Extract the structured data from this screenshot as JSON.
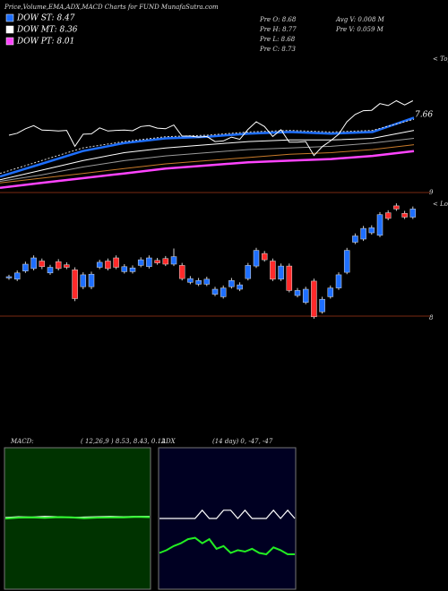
{
  "header": {
    "title": "Price,Volume,EMA,ADX,MACD Charts for FUND MunafaSutra.com"
  },
  "stats": {
    "left": [
      "Pre  O: 8.68",
      "Pre  H: 8.77",
      "Pre  L: 8.68",
      "Pre  C: 8.73"
    ],
    "right": [
      "Avg V: 0.008 M",
      "Pre  V: 0.059 M"
    ]
  },
  "price_panel": {
    "ylim": [
      6.0,
      10.3
    ],
    "last_label": "7.66",
    "right_top": "< Tope",
    "right_mark": "9",
    "series": [
      {
        "name": "DOW ST: 8.47",
        "color": "#1e6fff",
        "values": [
          6.5,
          6.9,
          7.3,
          7.55,
          7.7,
          7.75,
          7.85,
          7.9,
          7.85,
          7.9,
          8.35
        ]
      },
      {
        "name": "DOW MT: 8.36",
        "color": "#ffffff",
        "values": [
          6.4,
          6.7,
          7.0,
          7.25,
          7.4,
          7.5,
          7.6,
          7.65,
          7.65,
          7.7,
          7.95
        ]
      },
      {
        "name": "DOW PT: 8.01",
        "color": "#ff44ff",
        "values": [
          6.15,
          6.3,
          6.45,
          6.6,
          6.75,
          6.85,
          6.95,
          7.0,
          7.05,
          7.15,
          7.3
        ]
      },
      {
        "color": "#c87a2a",
        "values": [
          6.3,
          6.45,
          6.6,
          6.75,
          6.9,
          7.0,
          7.1,
          7.2,
          7.25,
          7.35,
          7.5
        ]
      },
      {
        "color": "#9a9a9a",
        "values": [
          6.35,
          6.55,
          6.8,
          7.0,
          7.15,
          7.25,
          7.35,
          7.4,
          7.45,
          7.55,
          7.7
        ]
      },
      {
        "color": "#dddddd",
        "dashed": true,
        "values": [
          6.6,
          7.0,
          7.4,
          7.6,
          7.75,
          7.8,
          7.9,
          7.95,
          7.9,
          7.95,
          8.3
        ]
      }
    ]
  },
  "candle_panel": {
    "ylim": [
      7.1,
      9.0
    ],
    "right_top": "< Lower",
    "right_mark": "8",
    "up_color": "#1e6fff",
    "down_color": "#ff2a2a",
    "candles": [
      [
        7.78,
        7.83,
        7.75,
        7.8
      ],
      [
        7.76,
        7.9,
        7.73,
        7.86
      ],
      [
        7.89,
        8.04,
        7.86,
        8.0
      ],
      [
        7.93,
        8.14,
        7.9,
        8.1
      ],
      [
        8.05,
        8.09,
        7.92,
        7.96
      ],
      [
        7.86,
        7.99,
        7.83,
        7.95
      ],
      [
        8.04,
        8.08,
        7.9,
        7.93
      ],
      [
        7.99,
        8.03,
        7.92,
        7.95
      ],
      [
        7.91,
        7.95,
        7.41,
        7.45
      ],
      [
        7.64,
        7.87,
        7.6,
        7.83
      ],
      [
        7.64,
        7.88,
        7.6,
        7.84
      ],
      [
        7.95,
        8.07,
        7.92,
        8.03
      ],
      [
        8.05,
        8.09,
        7.9,
        7.93
      ],
      [
        8.1,
        8.14,
        7.92,
        7.95
      ],
      [
        7.88,
        8.0,
        7.85,
        7.96
      ],
      [
        7.88,
        7.98,
        7.85,
        7.94
      ],
      [
        7.98,
        8.11,
        7.95,
        8.07
      ],
      [
        7.96,
        8.14,
        7.93,
        8.1
      ],
      [
        8.06,
        8.1,
        7.99,
        8.02
      ],
      [
        8.09,
        8.13,
        7.97,
        8.0
      ],
      [
        8.0,
        8.25,
        7.97,
        8.12
      ],
      [
        7.98,
        8.02,
        7.74,
        7.77
      ],
      [
        7.71,
        7.81,
        7.68,
        7.77
      ],
      [
        7.68,
        7.78,
        7.65,
        7.74
      ],
      [
        7.68,
        7.8,
        7.65,
        7.76
      ],
      [
        7.52,
        7.64,
        7.49,
        7.6
      ],
      [
        7.48,
        7.66,
        7.45,
        7.62
      ],
      [
        7.64,
        7.78,
        7.61,
        7.74
      ],
      [
        7.6,
        7.71,
        7.57,
        7.67
      ],
      [
        7.77,
        8.02,
        7.74,
        7.98
      ],
      [
        7.97,
        8.26,
        7.94,
        8.22
      ],
      [
        8.17,
        8.21,
        8.04,
        8.07
      ],
      [
        8.05,
        8.09,
        7.73,
        7.76
      ],
      [
        7.76,
        8.01,
        7.73,
        7.97
      ],
      [
        7.97,
        8.01,
        7.55,
        7.58
      ],
      [
        7.5,
        7.62,
        7.47,
        7.58
      ],
      [
        7.39,
        7.64,
        7.36,
        7.6
      ],
      [
        7.73,
        7.77,
        7.13,
        7.16
      ],
      [
        7.24,
        7.48,
        7.21,
        7.44
      ],
      [
        7.48,
        7.66,
        7.45,
        7.62
      ],
      [
        7.62,
        7.87,
        7.59,
        7.83
      ],
      [
        7.87,
        8.26,
        7.84,
        8.22
      ],
      [
        8.35,
        8.49,
        8.32,
        8.45
      ],
      [
        8.4,
        8.61,
        8.37,
        8.57
      ],
      [
        8.5,
        8.62,
        8.47,
        8.58
      ],
      [
        8.46,
        8.83,
        8.43,
        8.79
      ],
      [
        8.82,
        8.86,
        8.7,
        8.73
      ],
      [
        8.93,
        8.97,
        8.85,
        8.88
      ],
      [
        8.81,
        8.85,
        8.72,
        8.75
      ],
      [
        8.75,
        8.92,
        8.72,
        8.88
      ]
    ]
  },
  "macd": {
    "label": "MACD:",
    "params": "( 12,26,9 ) 8.53, 8.43, 0.12",
    "ylim": [
      -4,
      4
    ],
    "series": [
      {
        "color": "#ffffff",
        "values": [
          0.05,
          0.1,
          0.08,
          0.12,
          0.1,
          0.05,
          0.08,
          0.1,
          0.12,
          0.1,
          0.12,
          0.12
        ]
      },
      {
        "color": "#33ff33",
        "values": [
          0,
          0.05,
          0.06,
          0.04,
          0.08,
          0.06,
          0.02,
          0.05,
          0.07,
          0.06,
          0.1,
          0.08
        ]
      }
    ]
  },
  "adx": {
    "label": "ADX",
    "params": "(14 day) 0, -47, -47",
    "ylim": [
      0,
      100
    ],
    "series": [
      {
        "color": "#ffffff",
        "values": [
          50,
          50,
          50,
          50,
          50,
          50,
          56,
          50,
          50,
          56,
          56,
          50,
          56,
          50,
          50,
          50,
          56,
          50,
          56,
          50
        ]
      },
      {
        "color": "#22ee22",
        "values": [
          25,
          27,
          30,
          32,
          35,
          36,
          32,
          35,
          28,
          30,
          25,
          27,
          26,
          28,
          25,
          24,
          29,
          27,
          24,
          24
        ]
      }
    ]
  }
}
